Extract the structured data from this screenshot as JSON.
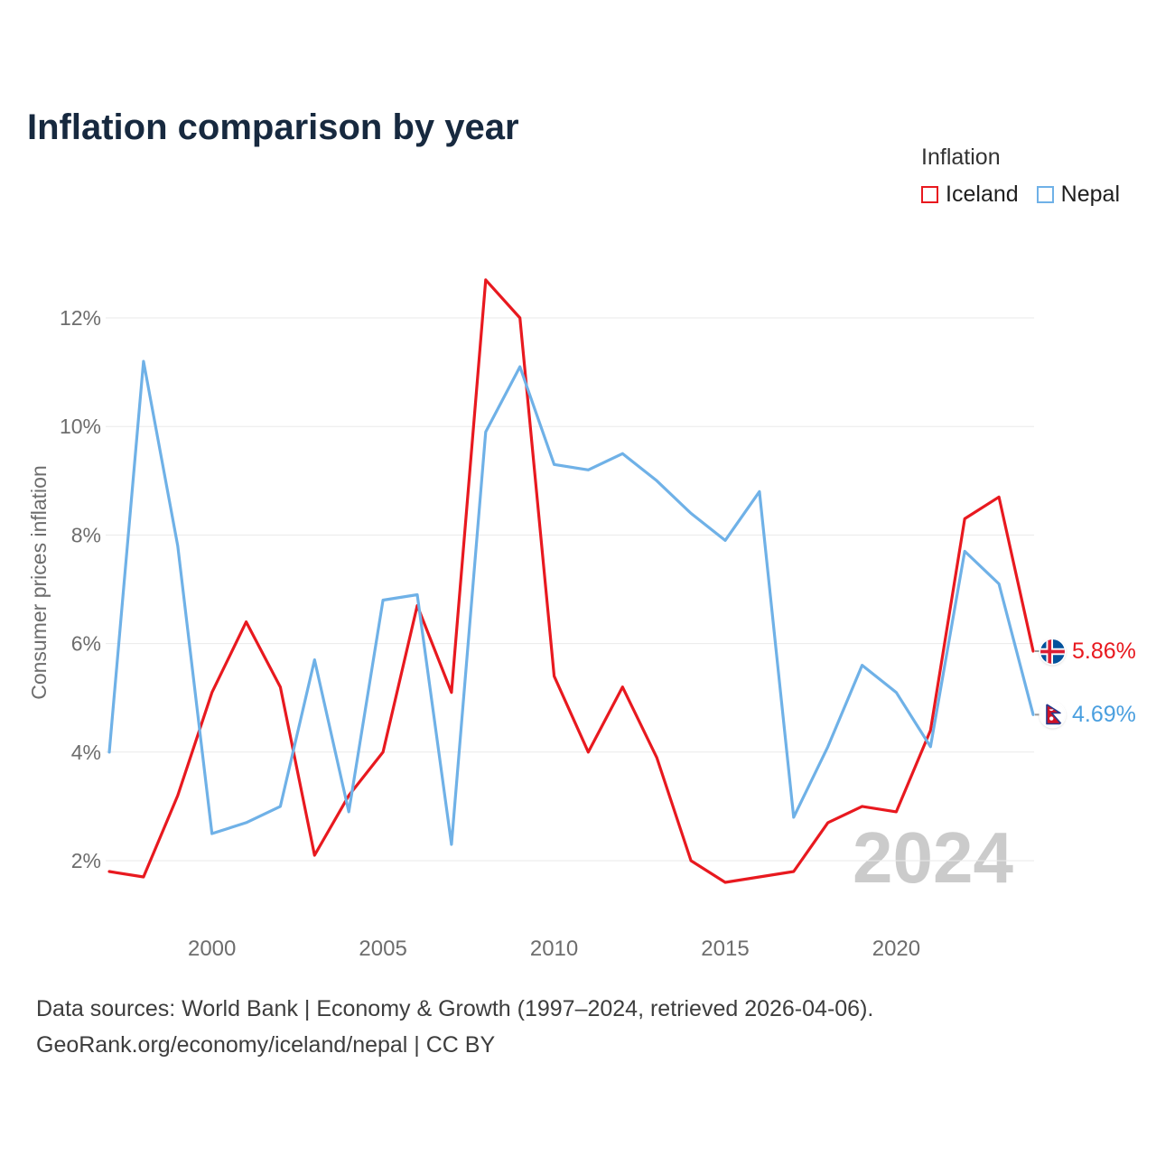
{
  "title": "Inflation comparison by year",
  "legend": {
    "title": "Inflation",
    "series": [
      {
        "label": "Iceland",
        "color": "#e8191f"
      },
      {
        "label": "Nepal",
        "color": "#6fb1e7"
      }
    ]
  },
  "watermark": "2024",
  "end_labels": [
    {
      "series": "Iceland",
      "value": "5.86%",
      "icon": "iceland-flag-icon",
      "color": "#e8191f"
    },
    {
      "series": "Nepal",
      "value": "4.69%",
      "icon": "nepal-flag-icon",
      "color": "#4a9fdf"
    }
  ],
  "footer": {
    "line1": "Data sources: World Bank | Economy & Growth (1997–2024, retrieved 2026-04-06).",
    "line2": "GeoRank.org/economy/iceland/nepal | CC BY"
  },
  "chart_data": {
    "type": "line",
    "title": "Inflation comparison by year",
    "xlabel": "",
    "ylabel": "Consumer prices inflation",
    "x": [
      1997,
      1998,
      1999,
      2000,
      2001,
      2002,
      2003,
      2004,
      2005,
      2006,
      2007,
      2008,
      2009,
      2010,
      2011,
      2012,
      2013,
      2014,
      2015,
      2016,
      2017,
      2018,
      2019,
      2020,
      2021,
      2022,
      2023,
      2024
    ],
    "series": [
      {
        "name": "Iceland",
        "color": "#e8191f",
        "values": [
          1.8,
          1.7,
          3.2,
          5.1,
          6.4,
          5.2,
          2.1,
          3.2,
          4.0,
          6.7,
          5.1,
          12.7,
          12.0,
          5.4,
          4.0,
          5.2,
          3.9,
          2.0,
          1.6,
          1.7,
          1.8,
          2.7,
          3.0,
          2.9,
          4.4,
          8.3,
          8.7,
          5.86
        ]
      },
      {
        "name": "Nepal",
        "color": "#6fb1e7",
        "values": [
          4.0,
          11.2,
          7.8,
          2.5,
          2.7,
          3.0,
          5.7,
          2.9,
          6.8,
          6.9,
          2.3,
          9.9,
          11.1,
          9.3,
          9.2,
          9.5,
          9.0,
          8.4,
          7.9,
          8.8,
          2.8,
          4.1,
          5.6,
          5.1,
          4.1,
          7.7,
          7.1,
          4.69
        ]
      }
    ],
    "yticks": [
      "2%",
      "4%",
      "6%",
      "8%",
      "10%",
      "12%"
    ],
    "ytick_values": [
      2,
      4,
      6,
      8,
      10,
      12
    ],
    "xticks": [
      2000,
      2005,
      2010,
      2015,
      2020
    ],
    "ylim": [
      1,
      13
    ],
    "grid": true,
    "legend_position": "top-right"
  }
}
